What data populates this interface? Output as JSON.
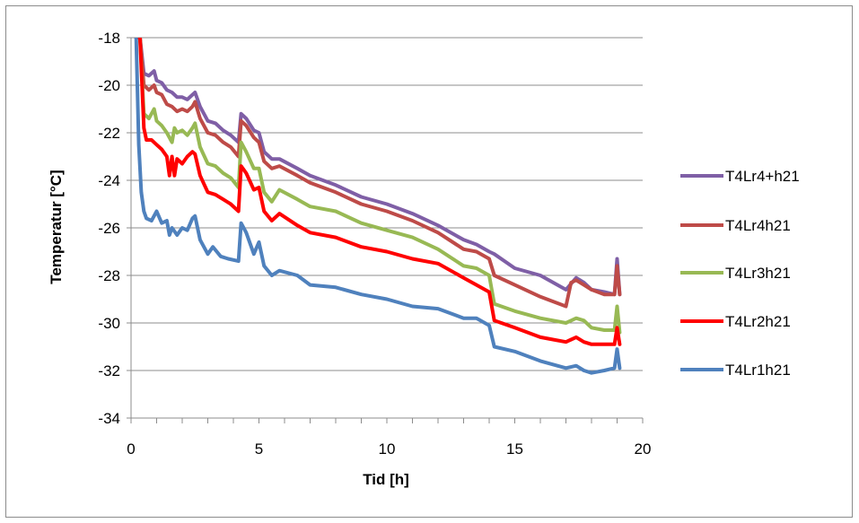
{
  "chart_data": {
    "type": "line",
    "title": "",
    "xlabel": "Tid [h]",
    "ylabel": "Temperatur [°C]",
    "xlim": [
      0,
      20
    ],
    "ylim": [
      -34,
      -18
    ],
    "xticks": [
      0,
      5,
      10,
      15,
      20
    ],
    "yticks": [
      -18,
      -20,
      -22,
      -24,
      -26,
      -28,
      -30,
      -32,
      -34
    ],
    "grid": "horizontal",
    "legend": "right",
    "series": [
      {
        "name": "T4Lr4+h21",
        "color": "#7f5fa6",
        "x": [
          0.2,
          0.35,
          0.5,
          0.7,
          0.9,
          1.0,
          1.2,
          1.4,
          1.6,
          1.8,
          2.0,
          2.2,
          2.4,
          2.5,
          2.7,
          3.0,
          3.3,
          3.6,
          3.9,
          4.2,
          4.3,
          4.5,
          4.8,
          5.0,
          5.2,
          5.5,
          5.8,
          6.5,
          7.0,
          8.0,
          9.0,
          10.0,
          11.0,
          12.0,
          13.0,
          13.5,
          14.0,
          14.2,
          15.0,
          16.0,
          17.0,
          17.4,
          17.7,
          18.0,
          18.5,
          18.9,
          19.0,
          19.1
        ],
        "y": [
          -18.0,
          -18.0,
          -19.5,
          -19.6,
          -19.4,
          -19.8,
          -19.9,
          -20.2,
          -20.3,
          -20.5,
          -20.5,
          -20.6,
          -20.4,
          -20.3,
          -20.9,
          -21.5,
          -21.6,
          -21.9,
          -22.1,
          -22.4,
          -21.2,
          -21.4,
          -21.9,
          -22.0,
          -22.8,
          -23.1,
          -23.1,
          -23.5,
          -23.8,
          -24.2,
          -24.7,
          -25.0,
          -25.4,
          -25.9,
          -26.5,
          -26.7,
          -27.0,
          -27.1,
          -27.7,
          -28.0,
          -28.6,
          -28.1,
          -28.3,
          -28.6,
          -28.7,
          -28.8,
          -27.3,
          -28.8
        ]
      },
      {
        "name": "T4Lr4h21",
        "color": "#be4b48",
        "x": [
          0.2,
          0.35,
          0.5,
          0.7,
          0.9,
          1.0,
          1.2,
          1.4,
          1.6,
          1.8,
          2.0,
          2.2,
          2.4,
          2.5,
          2.7,
          3.0,
          3.3,
          3.6,
          3.9,
          4.2,
          4.3,
          4.5,
          4.8,
          5.0,
          5.2,
          5.5,
          5.8,
          6.5,
          7.0,
          8.0,
          9.0,
          10.0,
          11.0,
          12.0,
          13.0,
          13.5,
          14.0,
          14.2,
          15.0,
          16.0,
          17.0,
          17.2,
          17.4,
          17.7,
          18.0,
          18.5,
          18.9,
          19.0,
          19.1
        ],
        "y": [
          -18.0,
          -18.0,
          -20.0,
          -20.2,
          -20.0,
          -20.3,
          -20.4,
          -20.8,
          -20.9,
          -21.1,
          -21.0,
          -21.1,
          -20.9,
          -20.7,
          -21.4,
          -22.0,
          -22.1,
          -22.4,
          -22.6,
          -23.0,
          -21.5,
          -21.7,
          -22.2,
          -22.4,
          -23.2,
          -23.5,
          -23.4,
          -23.8,
          -24.1,
          -24.5,
          -25.0,
          -25.3,
          -25.7,
          -26.2,
          -26.9,
          -27.0,
          -27.3,
          -28.0,
          -28.4,
          -28.9,
          -29.3,
          -28.3,
          -28.2,
          -28.4,
          -28.6,
          -28.8,
          -28.8,
          -27.6,
          -28.8
        ]
      },
      {
        "name": "T4Lr3h21",
        "color": "#98b954",
        "x": [
          0.2,
          0.35,
          0.5,
          0.7,
          0.9,
          1.0,
          1.2,
          1.4,
          1.6,
          1.7,
          1.8,
          2.0,
          2.2,
          2.4,
          2.5,
          2.7,
          3.0,
          3.3,
          3.6,
          3.9,
          4.2,
          4.3,
          4.5,
          4.8,
          5.0,
          5.2,
          5.5,
          5.8,
          6.5,
          7.0,
          8.0,
          9.0,
          10.0,
          11.0,
          12.0,
          13.0,
          13.5,
          14.0,
          14.2,
          15.0,
          16.0,
          17.0,
          17.4,
          17.7,
          18.0,
          18.5,
          18.9,
          19.0,
          19.1
        ],
        "y": [
          -18.0,
          -18.0,
          -21.2,
          -21.4,
          -21.0,
          -21.5,
          -21.7,
          -22.0,
          -22.4,
          -21.8,
          -22.0,
          -21.9,
          -22.1,
          -21.8,
          -21.6,
          -22.6,
          -23.3,
          -23.4,
          -23.7,
          -23.9,
          -24.3,
          -22.4,
          -22.8,
          -23.5,
          -23.5,
          -24.5,
          -24.9,
          -24.4,
          -24.8,
          -25.1,
          -25.3,
          -25.8,
          -26.1,
          -26.4,
          -26.9,
          -27.6,
          -27.7,
          -28.0,
          -29.2,
          -29.5,
          -29.8,
          -30.0,
          -29.8,
          -29.9,
          -30.2,
          -30.3,
          -30.3,
          -29.3,
          -30.4
        ]
      },
      {
        "name": "T4Lr2h21",
        "color": "#ff0000",
        "x": [
          0.2,
          0.35,
          0.5,
          0.6,
          0.8,
          1.0,
          1.2,
          1.4,
          1.5,
          1.6,
          1.7,
          1.8,
          2.0,
          2.2,
          2.4,
          2.5,
          2.7,
          3.0,
          3.3,
          3.6,
          3.9,
          4.2,
          4.3,
          4.5,
          4.8,
          5.0,
          5.2,
          5.5,
          5.8,
          6.5,
          7.0,
          8.0,
          9.0,
          10.0,
          11.0,
          12.0,
          13.0,
          13.5,
          14.0,
          14.2,
          15.0,
          16.0,
          17.0,
          17.4,
          17.7,
          18.0,
          18.5,
          18.9,
          19.0,
          19.1
        ],
        "y": [
          -18.0,
          -18.0,
          -21.8,
          -22.3,
          -22.3,
          -22.5,
          -22.7,
          -23.0,
          -23.8,
          -23.0,
          -23.8,
          -23.1,
          -23.3,
          -23.0,
          -22.8,
          -22.9,
          -23.8,
          -24.5,
          -24.6,
          -24.8,
          -25.0,
          -25.3,
          -23.4,
          -23.7,
          -24.4,
          -24.3,
          -25.3,
          -25.7,
          -25.4,
          -25.9,
          -26.2,
          -26.4,
          -26.8,
          -27.0,
          -27.3,
          -27.5,
          -28.1,
          -28.4,
          -28.7,
          -29.9,
          -30.2,
          -30.6,
          -30.8,
          -30.6,
          -30.8,
          -30.9,
          -30.9,
          -30.9,
          -30.2,
          -30.9
        ]
      },
      {
        "name": "T4Lr1h21",
        "color": "#4f81bd",
        "x": [
          0.2,
          0.3,
          0.4,
          0.5,
          0.6,
          0.8,
          1.0,
          1.2,
          1.4,
          1.5,
          1.6,
          1.8,
          2.0,
          2.2,
          2.4,
          2.5,
          2.7,
          3.0,
          3.2,
          3.5,
          3.8,
          4.2,
          4.3,
          4.5,
          4.8,
          5.0,
          5.2,
          5.5,
          5.8,
          6.5,
          7.0,
          8.0,
          9.0,
          10.0,
          11.0,
          12.0,
          13.0,
          13.5,
          14.0,
          14.2,
          15.0,
          16.0,
          17.0,
          17.4,
          17.7,
          18.0,
          18.5,
          18.9,
          19.0,
          19.1
        ],
        "y": [
          -18.0,
          -22.5,
          -24.5,
          -25.3,
          -25.6,
          -25.7,
          -25.3,
          -25.8,
          -25.7,
          -26.3,
          -26.0,
          -26.3,
          -26.0,
          -26.1,
          -25.6,
          -25.5,
          -26.5,
          -27.1,
          -26.8,
          -27.2,
          -27.3,
          -27.4,
          -25.8,
          -26.2,
          -27.1,
          -26.6,
          -27.6,
          -28.0,
          -27.8,
          -28.0,
          -28.4,
          -28.5,
          -28.8,
          -29.0,
          -29.3,
          -29.4,
          -29.8,
          -29.8,
          -30.1,
          -31.0,
          -31.2,
          -31.6,
          -31.9,
          -31.8,
          -32.0,
          -32.1,
          -32.0,
          -31.9,
          -31.1,
          -31.9
        ]
      }
    ]
  }
}
